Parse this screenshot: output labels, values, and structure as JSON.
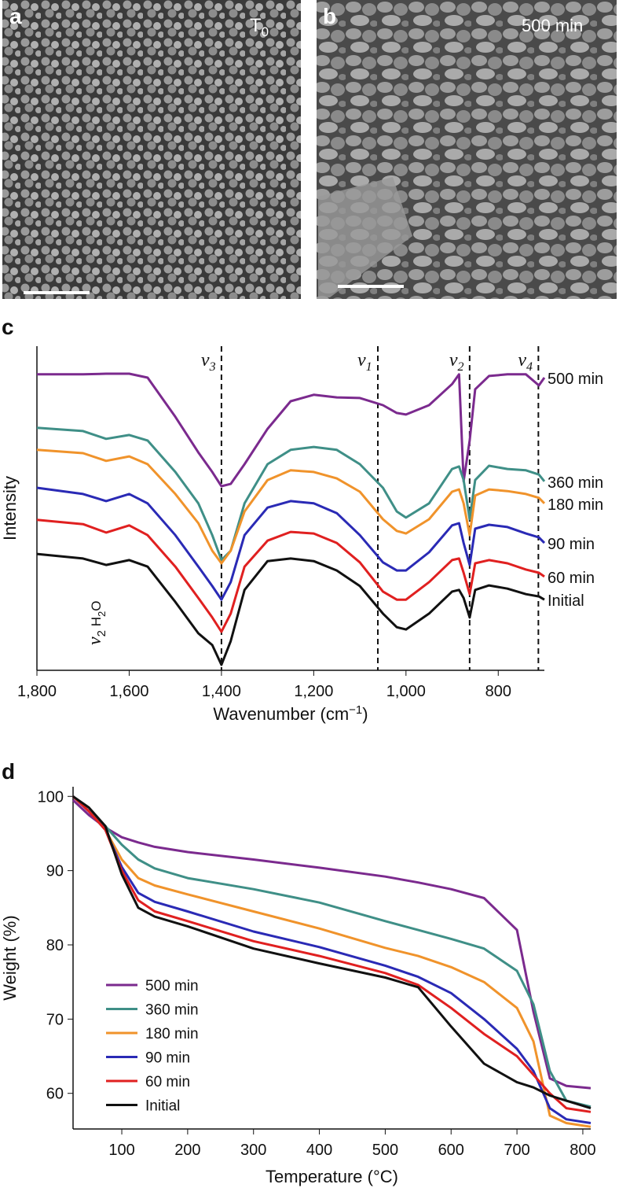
{
  "images": [
    {
      "label": "a",
      "caption": "T",
      "caption_sub": "0"
    },
    {
      "label": "b",
      "caption": "500 min"
    }
  ],
  "chart_data": [
    {
      "type": "line",
      "panel": "c",
      "x_label": "Wavenumber (cm",
      "x_label_sup": "−1",
      "x_label_end": ")",
      "y_label": "Intensity",
      "xlim": [
        1800,
        700
      ],
      "ylim": [
        0,
        100
      ],
      "xticks": [
        {
          "value": 1800,
          "label": "1,800"
        },
        {
          "value": 1600,
          "label": "1,600"
        },
        {
          "value": 1400,
          "label": "1,400"
        },
        {
          "value": 1200,
          "label": "1,200"
        },
        {
          "value": 1000,
          "label": "1,000"
        },
        800
      ],
      "grid": false,
      "legend": "line-end",
      "vlines": [
        {
          "value": 1400,
          "label": "ν",
          "sub": "3"
        },
        {
          "value": 1061,
          "label": "ν",
          "sub": "1"
        },
        {
          "value": 862,
          "label": "ν",
          "sub": "2"
        },
        {
          "value": 713,
          "label": "ν",
          "sub": "4"
        }
      ],
      "annotation": {
        "label": "ν",
        "sub": "2",
        "text": " H",
        "sub2": "2",
        "end": "O"
      },
      "x": [
        1800,
        1700,
        1650,
        1600,
        1560,
        1500,
        1450,
        1420,
        1400,
        1380,
        1350,
        1300,
        1250,
        1200,
        1150,
        1100,
        1050,
        1020,
        1000,
        950,
        900,
        885,
        875,
        862,
        850,
        820,
        780,
        740,
        712,
        700
      ],
      "series": [
        {
          "name": "500 min",
          "color": "#7b2a8e",
          "values": [
            91.3,
            91.3,
            91.5,
            91.5,
            90.3,
            78.2,
            67.2,
            61.2,
            56.8,
            57.5,
            63.6,
            74.5,
            83.0,
            85.0,
            84.2,
            84.0,
            81.8,
            79.4,
            78.9,
            81.8,
            88.3,
            91.3,
            58.3,
            70.9,
            86.7,
            90.8,
            91.3,
            91.3,
            87.9,
            90.3
          ]
        },
        {
          "name": "360 min",
          "color": "#3f8f87",
          "values": [
            74.8,
            73.8,
            71.4,
            72.6,
            70.9,
            61.2,
            51.5,
            41.7,
            34.0,
            36.9,
            51.5,
            63.6,
            68.0,
            68.9,
            68.0,
            63.6,
            56.3,
            49.0,
            47.1,
            51.5,
            62.1,
            62.9,
            58.7,
            46.6,
            58.7,
            63.1,
            62.1,
            61.7,
            60.4,
            58.3
          ]
        },
        {
          "name": "180 min",
          "color": "#f0932b",
          "values": [
            68.0,
            67.0,
            64.6,
            66.0,
            63.6,
            54.4,
            45.4,
            36.9,
            33.0,
            36.9,
            49.0,
            58.7,
            61.7,
            61.2,
            59.2,
            55.1,
            46.6,
            43.0,
            42.2,
            46.6,
            55.1,
            55.8,
            51.5,
            41.7,
            53.9,
            55.8,
            55.3,
            54.4,
            53.2,
            51.5
          ]
        },
        {
          "name": "90 min",
          "color": "#2a2ab5",
          "values": [
            56.3,
            54.4,
            52.2,
            54.4,
            51.5,
            41.7,
            32.0,
            26.0,
            21.8,
            27.2,
            41.7,
            50.2,
            52.2,
            51.5,
            48.5,
            41.7,
            33.3,
            30.8,
            30.8,
            36.4,
            44.7,
            45.4,
            39.3,
            32.5,
            43.7,
            44.9,
            44.2,
            42.2,
            41.0,
            39.3
          ]
        },
        {
          "name": "60 min",
          "color": "#e02020",
          "values": [
            46.4,
            45.1,
            42.5,
            44.7,
            41.7,
            32.0,
            22.3,
            16.3,
            11.9,
            17.5,
            32.0,
            40.0,
            42.7,
            42.2,
            39.3,
            33.3,
            24.3,
            21.8,
            21.8,
            27.2,
            34.0,
            34.5,
            30.1,
            23.5,
            33.0,
            34.0,
            33.0,
            31.1,
            30.1,
            28.9
          ]
        },
        {
          "name": "Initial",
          "color": "#111111",
          "values": [
            35.9,
            34.5,
            32.5,
            34.0,
            32.0,
            21.1,
            11.4,
            7.8,
            1.7,
            9.0,
            24.8,
            33.7,
            34.5,
            33.7,
            30.8,
            26.0,
            17.5,
            13.3,
            12.6,
            17.5,
            24.3,
            24.8,
            22.3,
            16.3,
            24.8,
            26.2,
            25.2,
            23.5,
            22.8,
            21.8
          ]
        }
      ]
    },
    {
      "type": "line",
      "panel": "d",
      "x_label": "Temperature (°C)",
      "y_label": "Weight (%)",
      "xlim": [
        26,
        812
      ],
      "ylim": [
        55.2,
        101.3
      ],
      "xticks": [
        100,
        200,
        300,
        400,
        500,
        600,
        700,
        800
      ],
      "yticks": [
        60,
        70,
        80,
        90,
        100
      ],
      "grid": false,
      "legend": "lower left",
      "x": [
        26,
        50,
        75,
        100,
        125,
        150,
        200,
        300,
        400,
        500,
        550,
        600,
        650,
        700,
        725,
        750,
        775,
        812
      ],
      "series": [
        {
          "name": "500 min",
          "color": "#7b2a8e",
          "values": [
            99.5,
            97.5,
            95.8,
            94.5,
            93.8,
            93.2,
            92.5,
            91.5,
            90.4,
            89.2,
            88.4,
            87.5,
            86.3,
            82,
            71,
            62,
            61,
            60.7
          ]
        },
        {
          "name": "360 min",
          "color": "#3f8f87",
          "values": [
            100,
            98,
            96,
            93.5,
            91.5,
            90.3,
            89,
            87.5,
            85.7,
            83.2,
            82,
            80.8,
            79.5,
            76.5,
            72,
            63,
            59,
            58.2
          ]
        },
        {
          "name": "180 min",
          "color": "#f0932b",
          "values": [
            100,
            98,
            95.5,
            91.5,
            89,
            88,
            86.8,
            84.5,
            82.2,
            79.6,
            78.5,
            77,
            75,
            71.5,
            67,
            57,
            56,
            55.5
          ]
        },
        {
          "name": "90 min",
          "color": "#2a2ab5",
          "values": [
            100,
            98,
            95.5,
            90.5,
            87,
            85.8,
            84.5,
            81.8,
            79.7,
            77.2,
            75.7,
            73.5,
            70,
            66,
            63,
            58,
            56.5,
            56
          ]
        },
        {
          "name": "60 min",
          "color": "#e02020",
          "values": [
            100,
            98,
            95.5,
            90,
            86,
            84.5,
            83.2,
            80.5,
            78.5,
            76.2,
            74.6,
            71.5,
            68,
            65,
            62.5,
            60,
            58,
            57.5
          ]
        },
        {
          "name": "Initial",
          "color": "#111111",
          "values": [
            100,
            98.5,
            96,
            89.5,
            85,
            83.8,
            82.5,
            79.5,
            77.5,
            75.6,
            74.3,
            69,
            64,
            61.5,
            60.8,
            59.7,
            59,
            58
          ]
        }
      ]
    }
  ]
}
